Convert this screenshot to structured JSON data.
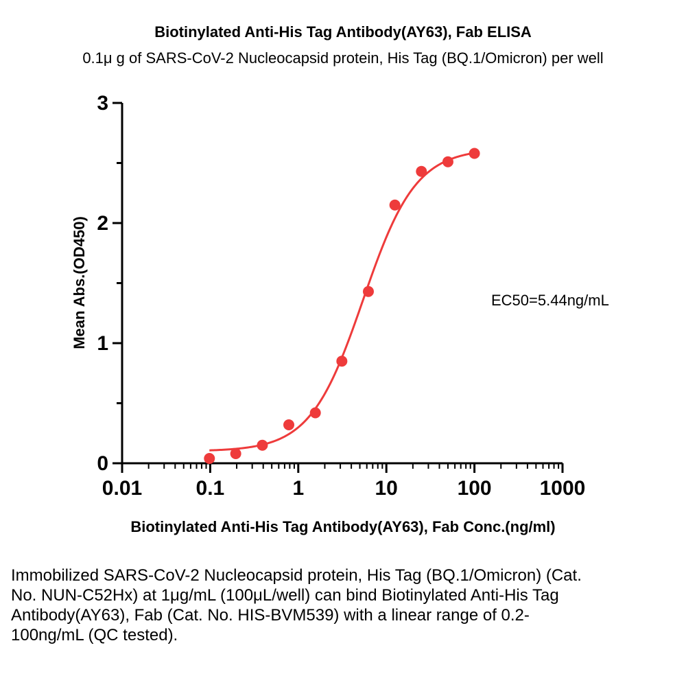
{
  "chart_data": {
    "type": "scatter",
    "title": "Biotinylated Anti-His Tag Antibody(AY63), Fab ELISA",
    "subtitle": "0.1μ g of SARS-CoV-2 Nucleocapsid protein, His Tag (BQ.1/Omicron) per well",
    "xlabel": "Biotinylated Anti-His Tag Antibody(AY63), Fab Conc.(ng/ml)",
    "ylabel": "Mean Abs.(OD450)",
    "x_scale": "log",
    "xlim": [
      0.01,
      1000
    ],
    "ylim": [
      0,
      3
    ],
    "x_ticks": [
      "0.01",
      "0.1",
      "1",
      "10",
      "100",
      "1000"
    ],
    "y_ticks": [
      "0",
      "1",
      "2",
      "3"
    ],
    "grid": false,
    "color": "#ee3b3b",
    "annotation": "EC50=5.44ng/mL",
    "series": [
      {
        "x": [
          0.098,
          0.195,
          0.391,
          0.781,
          1.563,
          3.125,
          6.25,
          12.5,
          25,
          50,
          100
        ],
        "y": [
          0.04,
          0.08,
          0.15,
          0.32,
          0.42,
          0.85,
          1.43,
          2.15,
          2.43,
          2.51,
          2.58
        ]
      }
    ],
    "fit": {
      "model": "4PL",
      "bottom": 0.1,
      "top": 2.62,
      "ec50": 5.44,
      "hill": 1.45
    }
  },
  "caption": "Immobilized SARS-CoV-2 Nucleocapsid protein, His Tag (BQ.1/Omicron) (Cat. No. NUN-C52Hx) at 1μg/mL (100μL/well) can bind Biotinylated Anti-His Tag Antibody(AY63), Fab (Cat. No. HIS-BVM539) with a linear range of 0.2-100ng/mL (QC tested)."
}
